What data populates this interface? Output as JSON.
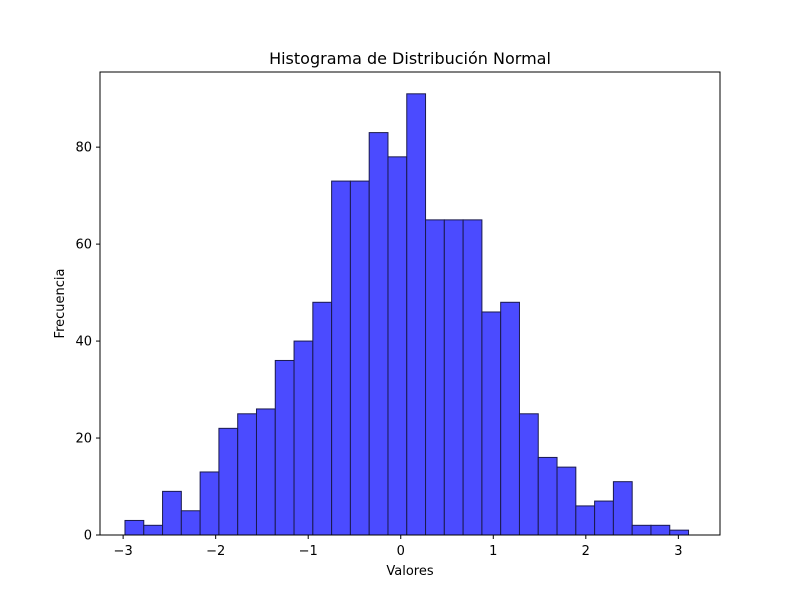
{
  "chart_data": {
    "type": "bar",
    "title": "Histograma de Distribución Normal",
    "xlabel": "Valores",
    "ylabel": "Frecuencia",
    "xlim": [
      -3.25,
      3.45
    ],
    "ylim": [
      0,
      95.5
    ],
    "x_ticks": [
      -3,
      -2,
      -1,
      0,
      1,
      2,
      3
    ],
    "x_tick_labels": [
      "−3",
      "−2",
      "−1",
      "0",
      "1",
      "2",
      "3"
    ],
    "y_ticks": [
      0,
      20,
      40,
      60,
      80
    ],
    "y_tick_labels": [
      "0",
      "20",
      "40",
      "60",
      "80"
    ],
    "bin_edges": [
      -2.98,
      -2.777,
      -2.574,
      -2.371,
      -2.168,
      -1.965,
      -1.762,
      -1.559,
      -1.356,
      -1.153,
      -0.95,
      -0.747,
      -0.544,
      -0.341,
      -0.138,
      0.065,
      0.268,
      0.471,
      0.674,
      0.877,
      1.08,
      1.283,
      1.486,
      1.689,
      1.892,
      2.095,
      2.298,
      2.501,
      2.704,
      2.907,
      3.11
    ],
    "values": [
      3,
      2,
      9,
      5,
      13,
      22,
      25,
      26,
      36,
      40,
      48,
      73,
      73,
      83,
      78,
      91,
      65,
      65,
      65,
      46,
      48,
      25,
      16,
      14,
      6,
      7,
      11,
      2,
      2,
      1
    ],
    "grid": false,
    "bar_color": "#4b4bff",
    "edge_color": "#1a1a4d"
  }
}
